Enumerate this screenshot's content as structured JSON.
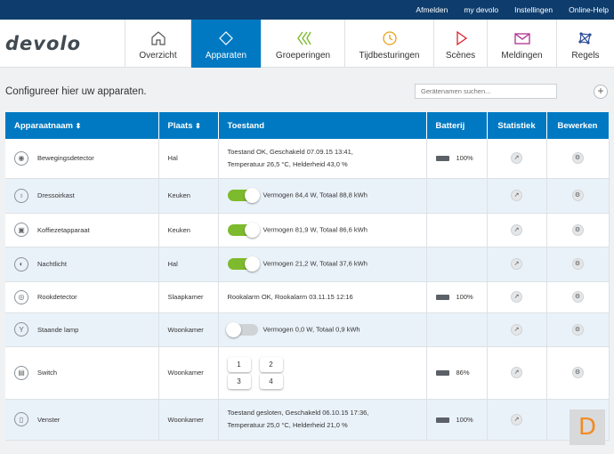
{
  "topbar": {
    "logout": "Afmelden",
    "mydevolo": "my devolo",
    "settings": "Instellingen",
    "help": "Online-Help"
  },
  "logo": "devolo",
  "nav": [
    {
      "label": "Overzicht",
      "icon": "home-icon"
    },
    {
      "label": "Apparaten",
      "icon": "diamond-icon"
    },
    {
      "label": "Groeperingen",
      "icon": "chevrons-icon"
    },
    {
      "label": "Tijdbesturingen",
      "icon": "clock-icon"
    },
    {
      "label": "Scènes",
      "icon": "play-icon"
    },
    {
      "label": "Meldingen",
      "icon": "mail-icon"
    },
    {
      "label": "Regels",
      "icon": "network-icon"
    }
  ],
  "toolbar": {
    "title": "Configureer hier uw apparaten.",
    "search_placeholder": "Gerätenamen suchen...",
    "add": "+"
  },
  "table": {
    "headers": {
      "name": "Apparaatnaam",
      "place": "Plaats",
      "state": "Toestand",
      "battery": "Batterij",
      "stats": "Statistiek",
      "edit": "Bewerken"
    },
    "sort_glyph": "⬍",
    "rows": [
      {
        "name": "Bewegingsdetector",
        "place": "Hal",
        "state1": "Toestand OK,  Geschakeld 07.09.15 13:41,",
        "state2": "Temperatuur 26,5 °C,  Helderheid 43,0 %",
        "battery": "100%"
      },
      {
        "name": "Dressoirkast",
        "place": "Keuken",
        "state1": "Vermogen 84,4 W,  Totaal 88,8 kWh"
      },
      {
        "name": "Koffiezetapparaat",
        "place": "Keuken",
        "state1": "Vermogen 81,9 W,  Totaal 86,6 kWh"
      },
      {
        "name": "Nachtlicht",
        "place": "Hal",
        "state1": "Vermogen 21,2 W,  Totaal 37,6 kWh"
      },
      {
        "name": "Rookdetector",
        "place": "Slaapkamer",
        "state1": "Rookalarm OK,  Rookalarm 03.11.15 12:16",
        "battery": "100%"
      },
      {
        "name": "Staande lamp",
        "place": "Woonkamer",
        "state1": "Vermogen 0,0 W,  Totaal 0,9 kWh"
      },
      {
        "name": "Switch",
        "place": "Woonkamer",
        "battery": "86%",
        "buttons": [
          "1",
          "2",
          "3",
          "4"
        ]
      },
      {
        "name": "Venster",
        "place": "Woonkamer",
        "state1": "Toestand gesloten,  Geschakeld 06.10.15 17:36,",
        "state2": "Temperatuur 25,0 °C,  Helderheid 21,0 %",
        "battery": "100%"
      }
    ]
  },
  "watermark": "D"
}
